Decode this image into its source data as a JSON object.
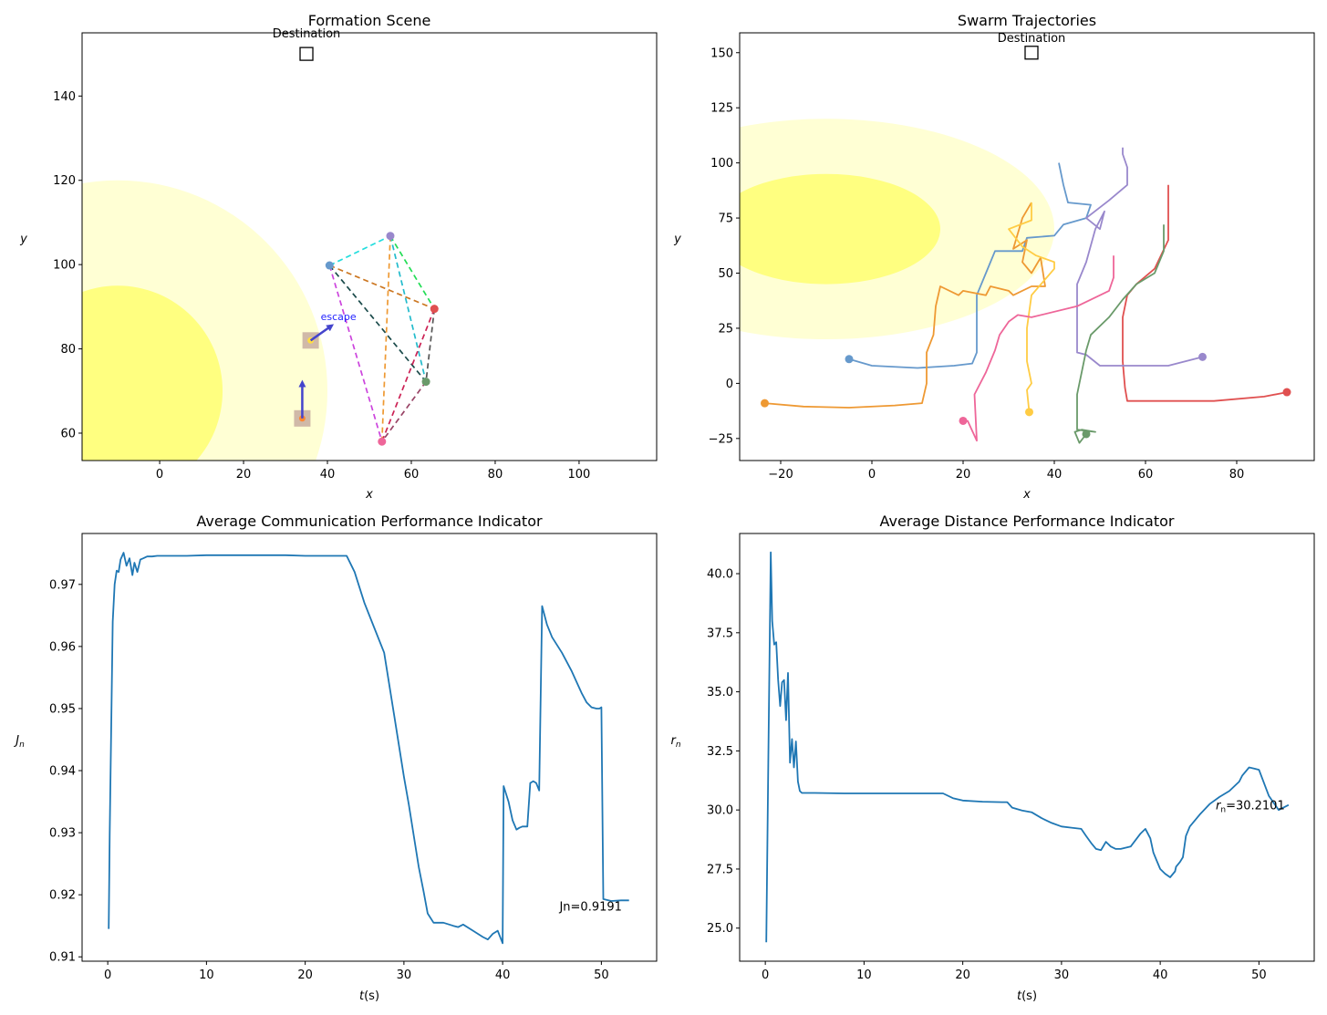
{
  "chart_data": [
    {
      "type": "scatter",
      "title": "Formation Scene",
      "xlabel": "x",
      "ylabel": "y",
      "xlim": [
        -18.5,
        118.5
      ],
      "ylim": [
        53.5,
        155
      ],
      "xticks": [
        0,
        20,
        40,
        60,
        80,
        100
      ],
      "yticks": [
        60,
        80,
        100,
        120,
        140
      ],
      "destination": {
        "label": "Destination",
        "x": 35,
        "y": 150
      },
      "threat_zones": [
        {
          "cx": -10,
          "cy": 70,
          "r": 50,
          "color": "#ffffd4"
        },
        {
          "cx": -10,
          "cy": 70,
          "r": 25,
          "color": "#ffff80"
        }
      ],
      "agents": [
        {
          "id": 1,
          "x": 40.5,
          "y": 99.8,
          "color": "#6699cc"
        },
        {
          "id": 2,
          "x": 55,
          "y": 106.8,
          "color": "#9988cc"
        },
        {
          "id": 3,
          "x": 65.5,
          "y": 89.5,
          "color": "#e05050"
        },
        {
          "id": 4,
          "x": 63.5,
          "y": 72.2,
          "color": "#6a9a6a"
        },
        {
          "id": 5,
          "x": 53,
          "y": 58,
          "color": "#ee6699"
        }
      ],
      "links": [
        {
          "a": 1,
          "b": 2,
          "color": "#22dddd"
        },
        {
          "a": 2,
          "b": 3,
          "color": "#22dd55"
        },
        {
          "a": 1,
          "b": 3,
          "color": "#cc7722"
        },
        {
          "a": 2,
          "b": 4,
          "color": "#22bbcc"
        },
        {
          "a": 1,
          "b": 4,
          "color": "#1a4a4a"
        },
        {
          "a": 3,
          "b": 4,
          "color": "#555555"
        },
        {
          "a": 1,
          "b": 5,
          "color": "#cc44dd"
        },
        {
          "a": 2,
          "b": 5,
          "color": "#ee9933"
        },
        {
          "a": 3,
          "b": 5,
          "color": "#cc2255"
        },
        {
          "a": 4,
          "b": 5,
          "color": "#994466"
        }
      ],
      "obstacles": [
        {
          "x": 36,
          "y": 82,
          "dot_color": "#ffdd44",
          "arrow": {
            "dx": 5,
            "dy": 3.5
          },
          "arrow_label": "escape"
        },
        {
          "x": 34,
          "y": 63.5,
          "dot_color": "#ff8833",
          "arrow": {
            "dx": 0,
            "dy": 8.5
          },
          "arrow_label": ""
        }
      ],
      "box_color": "#b08a8a",
      "arrow_color": "#4444cc",
      "escape_label_color": "#2222ff"
    },
    {
      "type": "line",
      "title": "Swarm Trajectories",
      "xlabel": "x",
      "ylabel": "y",
      "xlim": [
        -29,
        97
      ],
      "ylim": [
        -35,
        159
      ],
      "xticks": [
        -20,
        0,
        20,
        40,
        60,
        80
      ],
      "yticks": [
        -25,
        0,
        25,
        50,
        75,
        100,
        125,
        150
      ],
      "destination": {
        "label": "Destination",
        "x": 35,
        "y": 150
      },
      "threat_zones": [
        {
          "cx": -10,
          "cy": 70,
          "rx": 50,
          "ry": 50,
          "color": "#ffffd4"
        },
        {
          "cx": -10,
          "cy": 70,
          "rx": 25,
          "ry": 25,
          "color": "#ffff80"
        }
      ],
      "series": [
        {
          "color": "#6699cc",
          "start": [
            -5,
            11
          ],
          "points": [
            [
              -5,
              11
            ],
            [
              0,
              8
            ],
            [
              10,
              7
            ],
            [
              18,
              8
            ],
            [
              22,
              9
            ],
            [
              23,
              14
            ],
            [
              23,
              40
            ],
            [
              25,
              50
            ],
            [
              27,
              60
            ],
            [
              33,
              60
            ],
            [
              34,
              66
            ],
            [
              40,
              67
            ],
            [
              42,
              72
            ],
            [
              47,
              75
            ],
            [
              48,
              81
            ],
            [
              43,
              82
            ],
            [
              42,
              90
            ],
            [
              41,
              100
            ]
          ]
        },
        {
          "color": "#ee9933",
          "start": [
            -23.5,
            -9
          ],
          "points": [
            [
              -23.5,
              -9
            ],
            [
              -15,
              -10.5
            ],
            [
              -5,
              -11
            ],
            [
              5,
              -10
            ],
            [
              11,
              -9
            ],
            [
              12,
              0
            ],
            [
              12,
              14
            ],
            [
              13.5,
              22
            ],
            [
              14,
              35
            ],
            [
              15,
              44
            ],
            [
              19,
              40
            ],
            [
              20,
              42
            ],
            [
              25,
              40
            ],
            [
              26,
              44
            ],
            [
              30,
              42
            ],
            [
              31,
              40
            ],
            [
              35,
              44
            ],
            [
              38,
              44
            ],
            [
              37,
              57
            ],
            [
              35,
              50
            ],
            [
              33,
              55
            ],
            [
              34,
              65
            ],
            [
              31,
              61
            ],
            [
              33,
              75
            ],
            [
              35,
              82
            ]
          ]
        },
        {
          "color": "#e05050",
          "start": [
            91,
            -4
          ],
          "points": [
            [
              91,
              -4
            ],
            [
              86,
              -6
            ],
            [
              75,
              -8
            ],
            [
              60,
              -8
            ],
            [
              56,
              -8
            ],
            [
              55.5,
              -2
            ],
            [
              55,
              10
            ],
            [
              55,
              30
            ],
            [
              56,
              40
            ],
            [
              58,
              45
            ],
            [
              62,
              52
            ],
            [
              65,
              65
            ],
            [
              65,
              75
            ],
            [
              65,
              90
            ]
          ]
        },
        {
          "color": "#9988cc",
          "start": [
            72.5,
            12
          ],
          "points": [
            [
              72.5,
              12
            ],
            [
              65,
              8
            ],
            [
              55,
              8
            ],
            [
              50,
              8
            ],
            [
              47,
              13
            ],
            [
              45,
              14
            ],
            [
              45,
              30
            ],
            [
              45,
              45
            ],
            [
              47,
              55
            ],
            [
              49,
              70
            ],
            [
              51,
              78
            ],
            [
              50,
              70
            ],
            [
              47,
              75
            ],
            [
              52,
              83
            ],
            [
              56,
              90
            ],
            [
              56,
              98
            ],
            [
              55,
              104
            ],
            [
              55,
              107
            ]
          ]
        },
        {
          "color": "#6a9a6a",
          "start": [
            47,
            -23
          ],
          "points": [
            [
              47,
              -23
            ],
            [
              45.5,
              -27
            ],
            [
              44.5,
              -22
            ],
            [
              46,
              -21
            ],
            [
              49,
              -22
            ],
            [
              45,
              -21
            ],
            [
              45,
              -5
            ],
            [
              46,
              5
            ],
            [
              47,
              15
            ],
            [
              48,
              22
            ],
            [
              52,
              30
            ],
            [
              55,
              38
            ],
            [
              58,
              45
            ],
            [
              62,
              50
            ],
            [
              64,
              60
            ],
            [
              64,
              72
            ]
          ]
        },
        {
          "color": "#ffcc44",
          "start": [
            34.5,
            -13
          ],
          "points": [
            [
              34.5,
              -13
            ],
            [
              34,
              -3
            ],
            [
              35,
              0
            ],
            [
              34,
              10
            ],
            [
              34,
              25
            ],
            [
              35,
              40
            ],
            [
              40,
              52
            ],
            [
              40,
              55
            ],
            [
              36,
              58
            ],
            [
              33,
              62
            ],
            [
              30,
              70
            ],
            [
              35,
              74
            ],
            [
              35,
              82
            ]
          ]
        },
        {
          "color": "#ee6699",
          "start": [
            20,
            -17
          ],
          "points": [
            [
              20,
              -17
            ],
            [
              21,
              -17
            ],
            [
              23,
              -26
            ],
            [
              22.5,
              -5
            ],
            [
              25,
              5
            ],
            [
              27,
              15
            ],
            [
              28,
              22
            ],
            [
              30,
              28
            ],
            [
              32,
              31
            ],
            [
              35,
              30
            ],
            [
              45,
              35
            ],
            [
              52,
              42
            ],
            [
              53,
              48
            ],
            [
              53,
              58
            ]
          ]
        }
      ]
    },
    {
      "type": "line",
      "title": "Average Communication Performance Indicator",
      "xlabel": "t(s)",
      "ylabel": "J_n",
      "xlim": [
        -2.6,
        55.6
      ],
      "ylim": [
        0.9093,
        0.9782
      ],
      "xticks": [
        0,
        10,
        20,
        30,
        40,
        50
      ],
      "yticks": [
        0.91,
        0.92,
        0.93,
        0.94,
        0.95,
        0.96,
        0.97
      ],
      "annotation": "Jn=0.9191",
      "x": [
        0.1,
        0.2,
        0.5,
        0.7,
        0.9,
        1.1,
        1.3,
        1.6,
        1.9,
        2.2,
        2.5,
        2.7,
        3.0,
        3.3,
        3.6,
        4.0,
        4.5,
        5.0,
        6.0,
        8.0,
        10.0,
        15.0,
        18.0,
        20.0,
        22.0,
        24.2,
        25.0,
        26.0,
        27.0,
        28.0,
        29.0,
        30.0,
        30.5,
        31.0,
        31.5,
        32.0,
        32.4,
        33.0,
        34.0,
        35.0,
        35.5,
        36.0,
        37.0,
        38.0,
        38.5,
        39.0,
        39.5,
        40.0,
        40.1,
        40.6,
        41.0,
        41.4,
        41.7,
        42.0,
        42.5,
        42.8,
        43.1,
        43.4,
        43.7,
        44.0,
        44.5,
        45.0,
        46.0,
        47.0,
        48.0,
        48.5,
        49.0,
        49.5,
        49.8,
        50.0,
        50.2,
        51.0,
        52.0,
        52.8
      ],
      "y": [
        0.9145,
        0.93,
        0.964,
        0.97,
        0.9722,
        0.972,
        0.974,
        0.9751,
        0.973,
        0.9742,
        0.9715,
        0.9735,
        0.972,
        0.974,
        0.9742,
        0.9745,
        0.9745,
        0.9746,
        0.9746,
        0.9746,
        0.9747,
        0.9747,
        0.9747,
        0.9746,
        0.9746,
        0.9746,
        0.972,
        0.967,
        0.963,
        0.959,
        0.949,
        0.939,
        0.9345,
        0.9295,
        0.9245,
        0.9205,
        0.917,
        0.9155,
        0.9155,
        0.915,
        0.9148,
        0.9152,
        0.9142,
        0.9132,
        0.9128,
        0.9137,
        0.9142,
        0.9122,
        0.9375,
        0.935,
        0.932,
        0.9305,
        0.9308,
        0.931,
        0.931,
        0.938,
        0.9383,
        0.938,
        0.9368,
        0.9665,
        0.9635,
        0.9615,
        0.959,
        0.956,
        0.9525,
        0.951,
        0.9502,
        0.95,
        0.95,
        0.9502,
        0.9193,
        0.919,
        0.9191,
        0.9191
      ]
    },
    {
      "type": "line",
      "title": "Average Distance Performance Indicator",
      "xlabel": "t(s)",
      "ylabel": "r_n",
      "xlim": [
        -2.6,
        55.6
      ],
      "ylim": [
        23.6,
        41.7
      ],
      "xticks": [
        0,
        10,
        20,
        30,
        40,
        50
      ],
      "yticks": [
        25.0,
        27.5,
        30.0,
        32.5,
        35.0,
        37.5,
        40.0
      ],
      "annotation": "r_n=30.2101",
      "x": [
        0.1,
        0.3,
        0.55,
        0.7,
        0.9,
        1.1,
        1.3,
        1.5,
        1.7,
        1.9,
        2.1,
        2.3,
        2.5,
        2.7,
        2.9,
        3.1,
        3.3,
        3.5,
        3.7,
        3.9,
        4.2,
        5.0,
        8.0,
        12.0,
        15.0,
        18.0,
        19.0,
        20.0,
        22.0,
        24.0,
        24.5,
        25.0,
        26.0,
        27.0,
        28.0,
        29.0,
        30.0,
        31.0,
        32.0,
        32.5,
        33.0,
        33.5,
        34.0,
        34.5,
        35.0,
        35.5,
        36.0,
        37.0,
        38.0,
        38.5,
        39.0,
        39.3,
        39.6,
        40.0,
        40.5,
        41.0,
        41.5,
        41.6,
        42.0,
        42.3,
        42.6,
        43.0,
        44.0,
        45.0,
        46.0,
        47.0,
        48.0,
        48.3,
        49.0,
        49.5,
        50.0,
        51.0,
        52.0,
        53.0
      ],
      "y": [
        24.4,
        32.0,
        40.9,
        38.0,
        37.0,
        37.1,
        35.5,
        34.4,
        35.4,
        35.5,
        33.8,
        35.8,
        32.0,
        33.0,
        31.8,
        32.9,
        31.2,
        30.8,
        30.72,
        30.72,
        30.72,
        30.72,
        30.7,
        30.7,
        30.7,
        30.7,
        30.5,
        30.4,
        30.35,
        30.33,
        30.33,
        30.1,
        29.98,
        29.9,
        29.65,
        29.45,
        29.3,
        29.25,
        29.2,
        28.9,
        28.6,
        28.35,
        28.3,
        28.65,
        28.45,
        28.35,
        28.35,
        28.45,
        29.0,
        29.2,
        28.8,
        28.2,
        27.9,
        27.5,
        27.3,
        27.15,
        27.4,
        27.6,
        27.8,
        28.0,
        28.9,
        29.3,
        29.8,
        30.25,
        30.55,
        30.8,
        31.2,
        31.45,
        31.8,
        31.75,
        31.7,
        30.6,
        30.0,
        30.21
      ]
    }
  ]
}
